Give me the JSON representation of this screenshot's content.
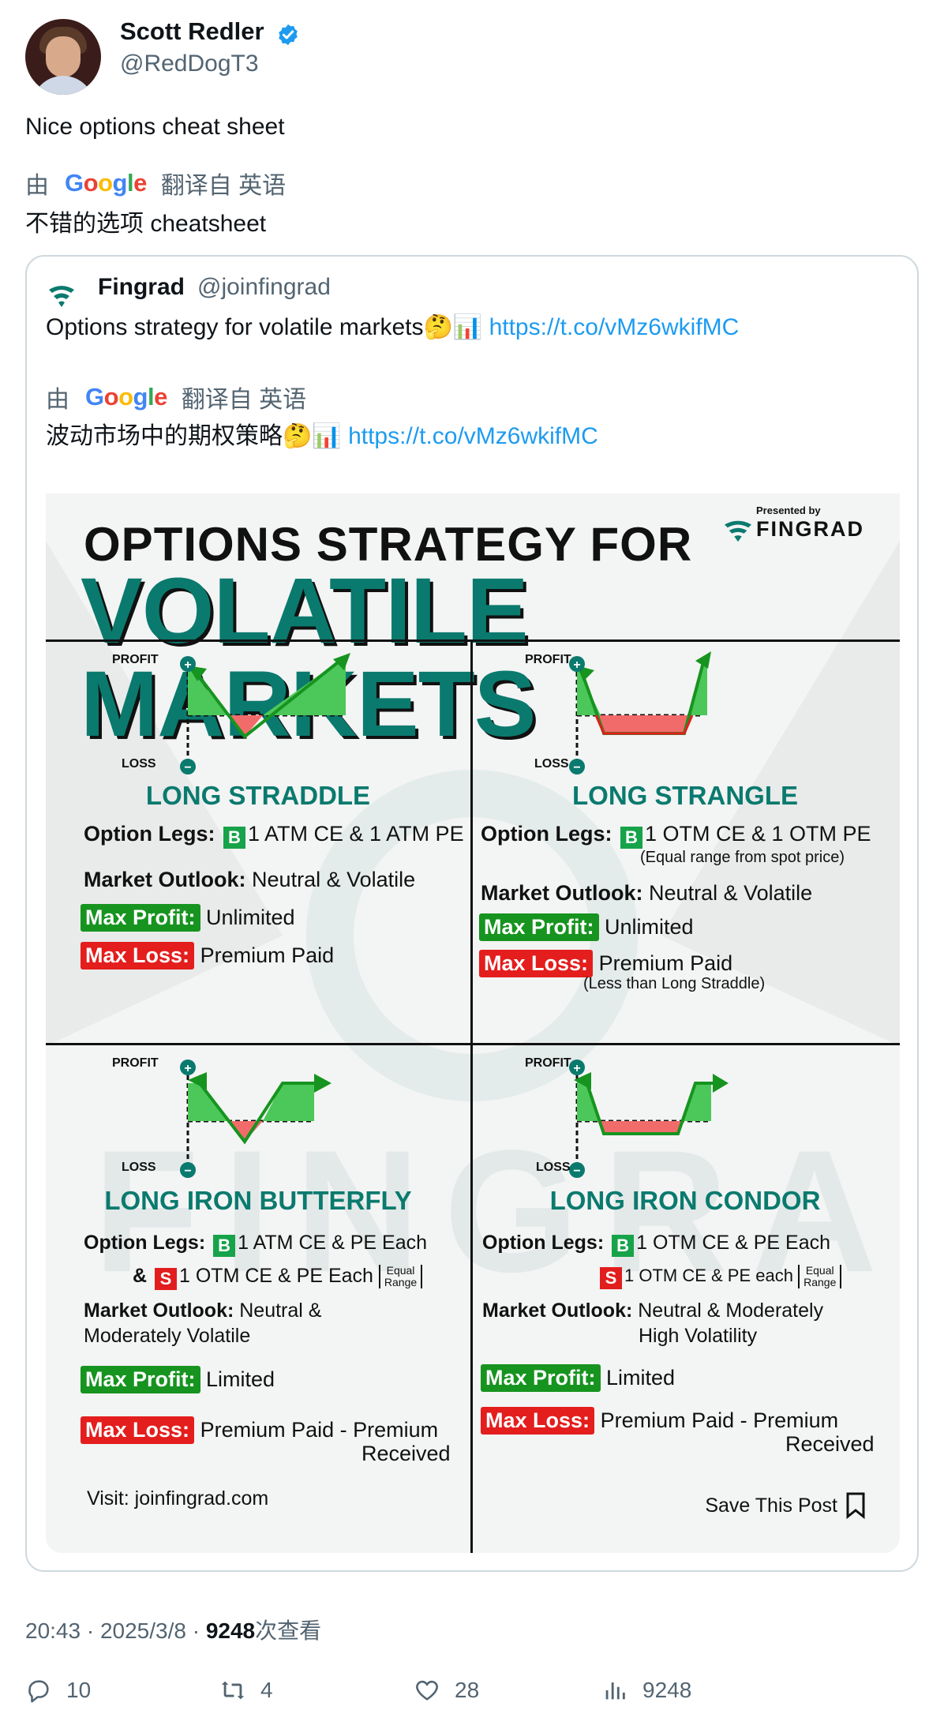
{
  "author": {
    "display_name": "Scott Redler",
    "handle": "@RedDogT3"
  },
  "tweet": {
    "text": "Nice options cheat sheet",
    "translate_prefix": "由",
    "translate_suffix": "翻译自 英语",
    "translated_text": "不错的选项 cheatsheet"
  },
  "quote": {
    "display_name": "Fingrad",
    "handle": "@joinfingrad",
    "text": "Options strategy for volatile markets🤔📊",
    "link": "https://t.co/vMz6wkifMC",
    "translate_prefix": "由",
    "translate_suffix": "翻译自 英语",
    "translated_text": "波动市场中的期权策略🤔📊"
  },
  "infographic": {
    "title_line1": "OPTIONS STRATEGY FOR",
    "title_line2": "VOLATILE MARKETS",
    "presented_by": "Presented by",
    "brand": "FINGRAD",
    "profit_label": "PROFIT",
    "loss_label": "LOSS",
    "leg_label": "Option Legs:",
    "outlook_label": "Market Outlook:",
    "max_profit_label": "Max Profit:",
    "max_loss_label": "Max Loss:",
    "buy_badge": "B",
    "sell_badge": "S",
    "strategies": {
      "straddle": {
        "title": "LONG STRADDLE",
        "legs": "1 ATM CE & 1 ATM PE",
        "outlook": "Neutral & Volatile",
        "max_profit": "Unlimited",
        "max_loss": "Premium Paid"
      },
      "strangle": {
        "title": "LONG STRANGLE",
        "legs": "1 OTM CE & 1 OTM PE",
        "legs_note": "(Equal range from spot price)",
        "outlook": "Neutral & Volatile",
        "max_profit": "Unlimited",
        "max_loss": "Premium Paid",
        "max_loss_note": "(Less than Long Straddle)"
      },
      "butterfly": {
        "title": "LONG IRON BUTTERFLY",
        "legs_buy": "1 ATM CE & PE Each",
        "legs_amp": "&",
        "legs_sell": "1 OTM CE & PE Each",
        "equal_range_1": "Equal",
        "equal_range_2": "Range",
        "outlook_1": "Neutral &",
        "outlook_2": "Moderately Volatile",
        "max_profit": "Limited",
        "max_loss_1": "Premium Paid",
        "max_loss_dash": "-",
        "max_loss_2": "Premium",
        "max_loss_3": "Received"
      },
      "condor": {
        "title": "LONG IRON CONDOR",
        "legs_buy": "1 OTM CE & PE Each",
        "legs_sell": "1 OTM CE & PE each",
        "equal_range_1": "Equal",
        "equal_range_2": "Range",
        "outlook_1": "Neutral & Moderately",
        "outlook_2": "High Volatility",
        "max_profit": "Limited",
        "max_loss_1": "Premium Paid - Premium",
        "max_loss_2": "Received"
      }
    },
    "visit": "Visit: joinfingrad.com",
    "save_post": "Save This Post"
  },
  "meta": {
    "time": "20:43 · 2025/3/8 · ",
    "views": "9248",
    "views_suffix": "次查看"
  },
  "actions": {
    "replies": "10",
    "retweets": "4",
    "likes": "28",
    "views": "9248"
  },
  "colors": {
    "link": "#1d9bf0",
    "brand_teal": "#0a7a6e",
    "profit_green": "#16941f",
    "loss_red": "#e41d1d",
    "muted": "#536471"
  }
}
